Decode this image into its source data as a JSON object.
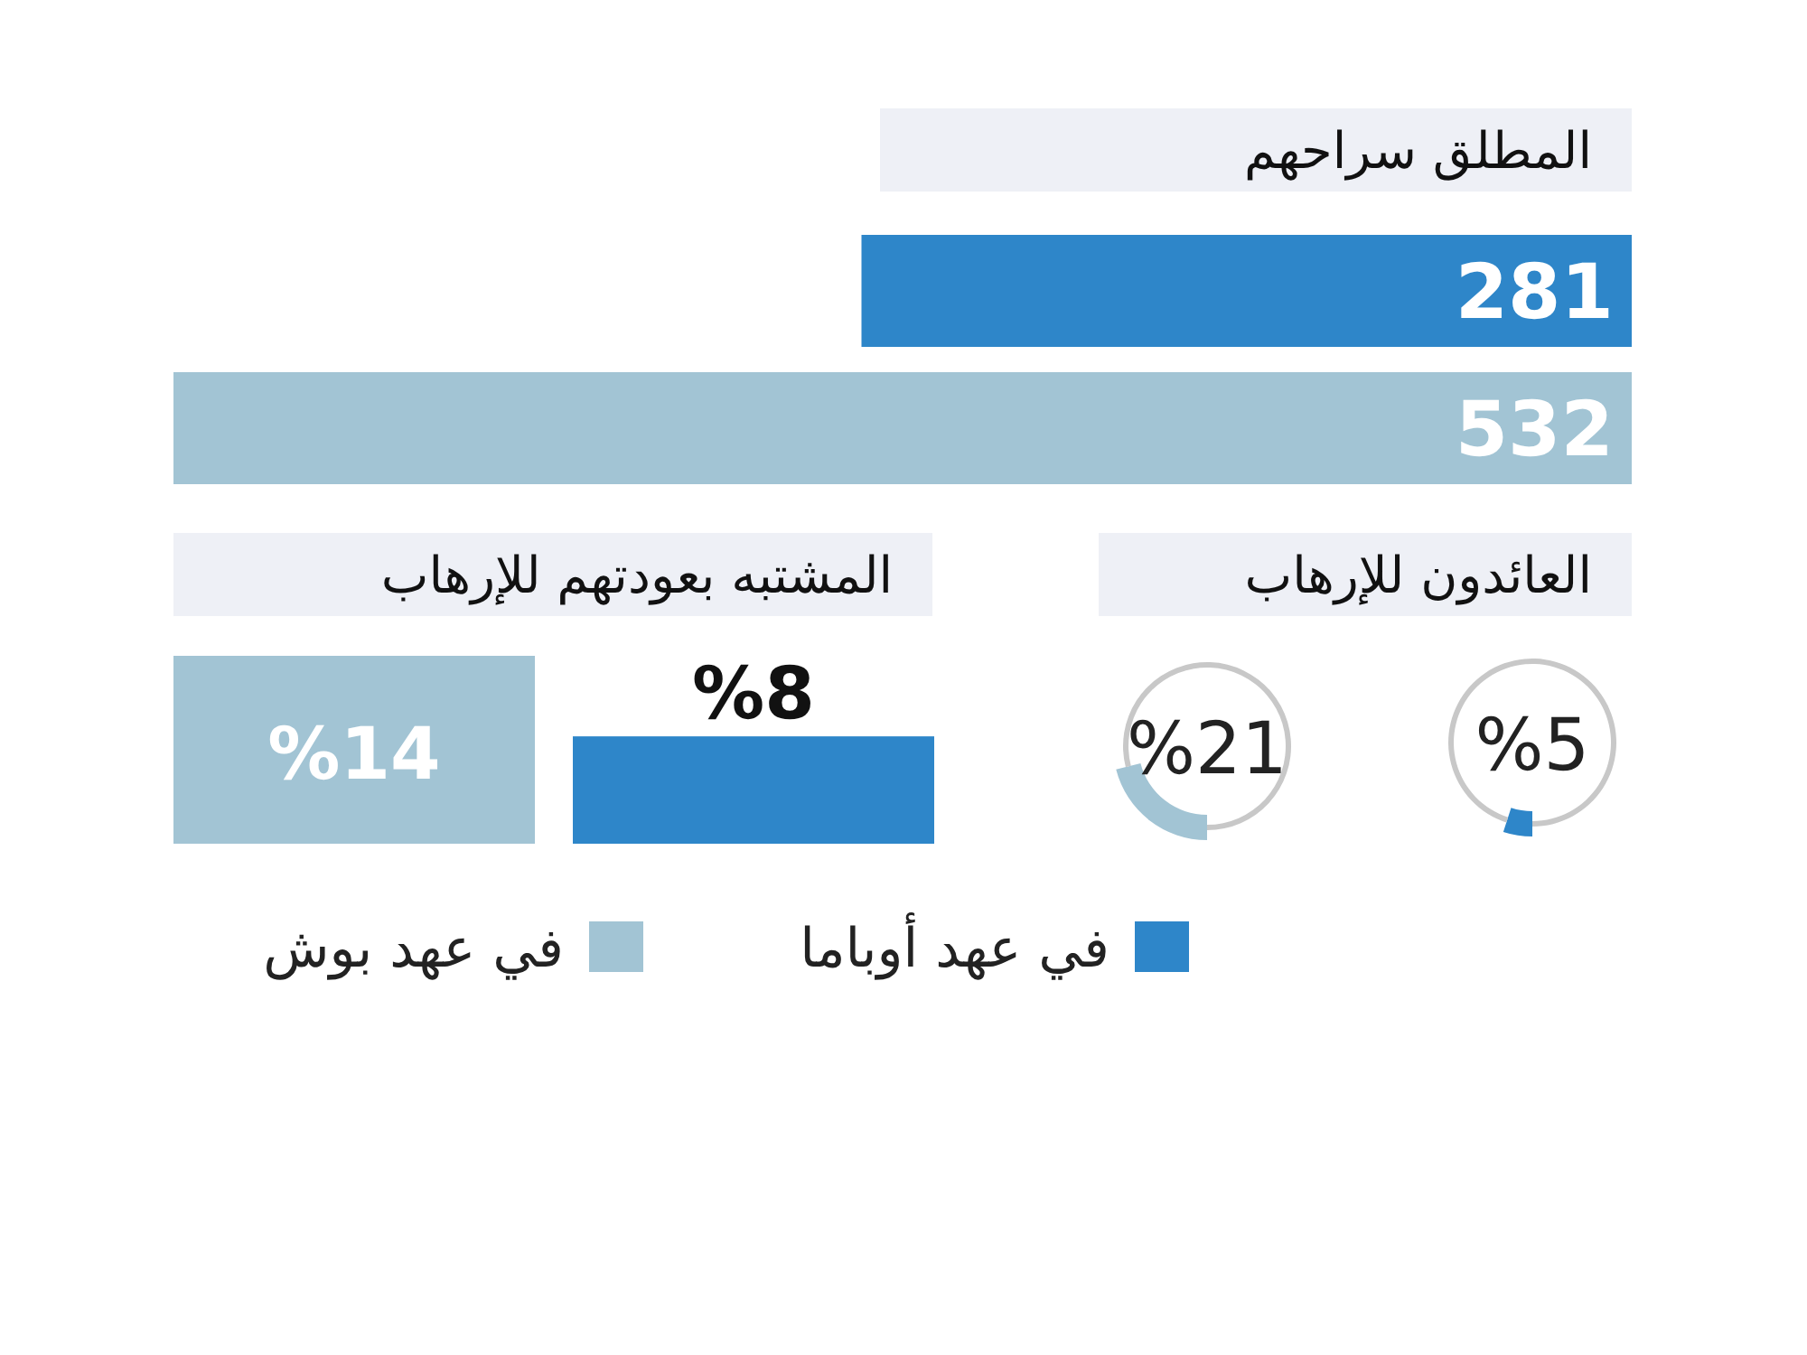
{
  "chart_data": [
    {
      "type": "bar",
      "orientation": "horizontal",
      "title": "المطلق سراحهم",
      "categories": [
        null
      ],
      "series": [
        {
          "color": "#2e86c9",
          "values": [
            281
          ]
        },
        {
          "color": "#a2c4d4",
          "values": [
            532
          ]
        }
      ],
      "data_labels": true
    },
    {
      "type": "donut",
      "title": "العائدون للإرهاب",
      "categories": [
        null,
        null
      ],
      "values": [
        5,
        95
      ],
      "colors": [
        "#2e86c9",
        "#c8c8c8"
      ],
      "value_labels": [
        "%5",
        null
      ]
    },
    {
      "type": "donut",
      "categories": [
        null,
        null
      ],
      "values": [
        21,
        79
      ],
      "colors": [
        "#a2c4d4",
        "#c8c8c8"
      ],
      "value_labels": [
        "%21",
        null
      ]
    },
    {
      "type": "bar",
      "title": "المشتبه بعودتهم للإرهاب",
      "categories": [
        null
      ],
      "series": [
        {
          "name": "في عهد بوش",
          "color": "#a2c4d4",
          "values": [
            14
          ],
          "value_labels": [
            "%14"
          ]
        },
        {
          "name": "في عهد أوباما",
          "color": "#2e86c9",
          "values": [
            8
          ],
          "value_labels": [
            "%8"
          ]
        }
      ],
      "legend": "bottom"
    }
  ]
}
